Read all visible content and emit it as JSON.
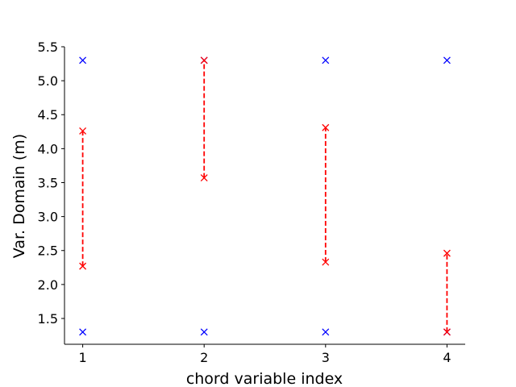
{
  "chart_data": {
    "type": "scatter",
    "title": "",
    "xlabel": "chord variable index",
    "ylabel": "Var. Domain (m)",
    "xlim": [
      0.85,
      4.15
    ],
    "ylim": [
      1.12,
      5.5
    ],
    "x_ticks": [
      1,
      2,
      3,
      4
    ],
    "y_ticks": [
      1.5,
      2.0,
      2.5,
      3.0,
      3.5,
      4.0,
      4.5,
      5.0,
      5.5
    ],
    "grid": false,
    "legend": "none",
    "series": [
      {
        "marker": "x",
        "color": "#0000ff",
        "line": "none",
        "points": [
          {
            "x": 1,
            "y": 1.3
          },
          {
            "x": 1,
            "y": 5.3
          },
          {
            "x": 2,
            "y": 1.3
          },
          {
            "x": 2,
            "y": 5.3
          },
          {
            "x": 3,
            "y": 1.3
          },
          {
            "x": 3,
            "y": 5.3
          },
          {
            "x": 4,
            "y": 1.3
          },
          {
            "x": 4,
            "y": 5.3
          }
        ]
      },
      {
        "marker": "x",
        "color": "#ff0000",
        "line": "dashed",
        "segments": [
          {
            "x": 1,
            "y_low": 2.27,
            "y_high": 4.26
          },
          {
            "x": 2,
            "y_low": 3.57,
            "y_high": 5.3
          },
          {
            "x": 3,
            "y_low": 2.33,
            "y_high": 4.31
          },
          {
            "x": 4,
            "y_low": 1.3,
            "y_high": 2.46
          }
        ]
      }
    ]
  }
}
